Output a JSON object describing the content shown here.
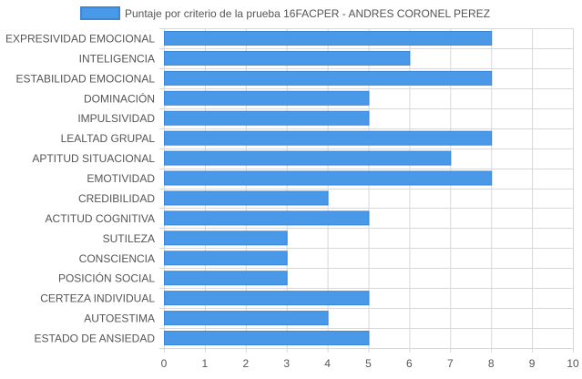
{
  "chart_data": {
    "type": "bar",
    "orientation": "horizontal",
    "legend": {
      "label": "Puntaje por criterio de la prueba 16FACPER - ANDRES CORONEL PEREZ",
      "position": "top"
    },
    "categories": [
      "EXPRESIVIDAD EMOCIONAL",
      "INTELIGENCIA",
      "ESTABILIDAD EMOCIONAL",
      "DOMINACIÓN",
      "IMPULSIVIDAD",
      "LEALTAD GRUPAL",
      "APTITUD SITUACIONAL",
      "EMOTIVIDAD",
      "CREDIBILIDAD",
      "ACTITUD COGNITIVA",
      "SUTILEZA",
      "CONSCIENCIA",
      "POSICIÓN SOCIAL",
      "CERTEZA INDIVIDUAL",
      "AUTOESTIMA",
      "ESTADO DE ANSIEDAD"
    ],
    "series": [
      {
        "name": "Puntaje por criterio de la prueba 16FACPER - ANDRES CORONEL PEREZ",
        "values": [
          8,
          6,
          8,
          5,
          5,
          8,
          7,
          8,
          4,
          5,
          3,
          3,
          3,
          5,
          4,
          5
        ]
      }
    ],
    "xlim": [
      0,
      10
    ],
    "xticks": [
      "0",
      "1",
      "2",
      "3",
      "4",
      "5",
      "6",
      "7",
      "8",
      "9",
      "10"
    ],
    "grid": true,
    "colors": {
      "bar_fill": "#4a98e8",
      "bar_stroke": "#3a86d8",
      "grid": "#d8d8d8",
      "text": "#555555"
    }
  }
}
